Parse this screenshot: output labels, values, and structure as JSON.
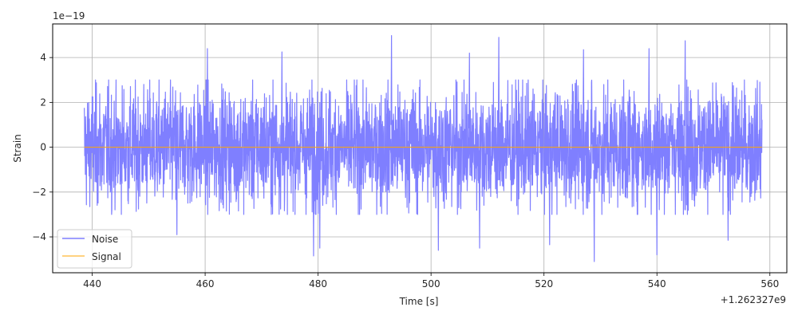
{
  "chart_data": {
    "type": "line",
    "xlabel": "Time [s]",
    "ylabel": "Strain",
    "x_offset_label": "+1.262327e9",
    "y_scale_label": "1e−19",
    "xlim": [
      433,
      563
    ],
    "ylim": [
      -5.6,
      5.5
    ],
    "xticks": [
      440,
      460,
      480,
      500,
      520,
      540,
      560
    ],
    "xtick_labels": [
      "440",
      "460",
      "480",
      "500",
      "520",
      "540",
      "560"
    ],
    "yticks": [
      -4,
      -2,
      0,
      2,
      4
    ],
    "ytick_labels": [
      "−4",
      "−2",
      "0",
      "2",
      "4"
    ],
    "grid": true,
    "legend_position": "lower-left",
    "series": [
      {
        "name": "Noise",
        "color": "#7f7fff",
        "kind": "noise",
        "x_range": [
          438.6,
          558.6
        ],
        "typical_envelope": 2.4,
        "peaks": [
          {
            "x": 493.0,
            "y": 4.98
          },
          {
            "x": 512.0,
            "y": 4.9
          },
          {
            "x": 460.4,
            "y": 4.4
          },
          {
            "x": 473.6,
            "y": 4.25
          },
          {
            "x": 506.8,
            "y": 4.2
          },
          {
            "x": 527.0,
            "y": 4.35
          },
          {
            "x": 538.6,
            "y": 4.4
          },
          {
            "x": 545.0,
            "y": 4.75
          },
          {
            "x": 501.3,
            "y": -4.6
          },
          {
            "x": 521.0,
            "y": -4.35
          },
          {
            "x": 528.9,
            "y": -5.1
          },
          {
            "x": 479.2,
            "y": -4.85
          },
          {
            "x": 480.3,
            "y": -4.5
          },
          {
            "x": 540.0,
            "y": -4.8
          },
          {
            "x": 552.6,
            "y": -4.15
          },
          {
            "x": 508.6,
            "y": -4.5
          },
          {
            "x": 455.0,
            "y": -3.9
          }
        ]
      },
      {
        "name": "Signal",
        "color": "#ffa500",
        "kind": "line",
        "x": [
          438.6,
          558.6
        ],
        "y": [
          0,
          0
        ]
      }
    ]
  }
}
